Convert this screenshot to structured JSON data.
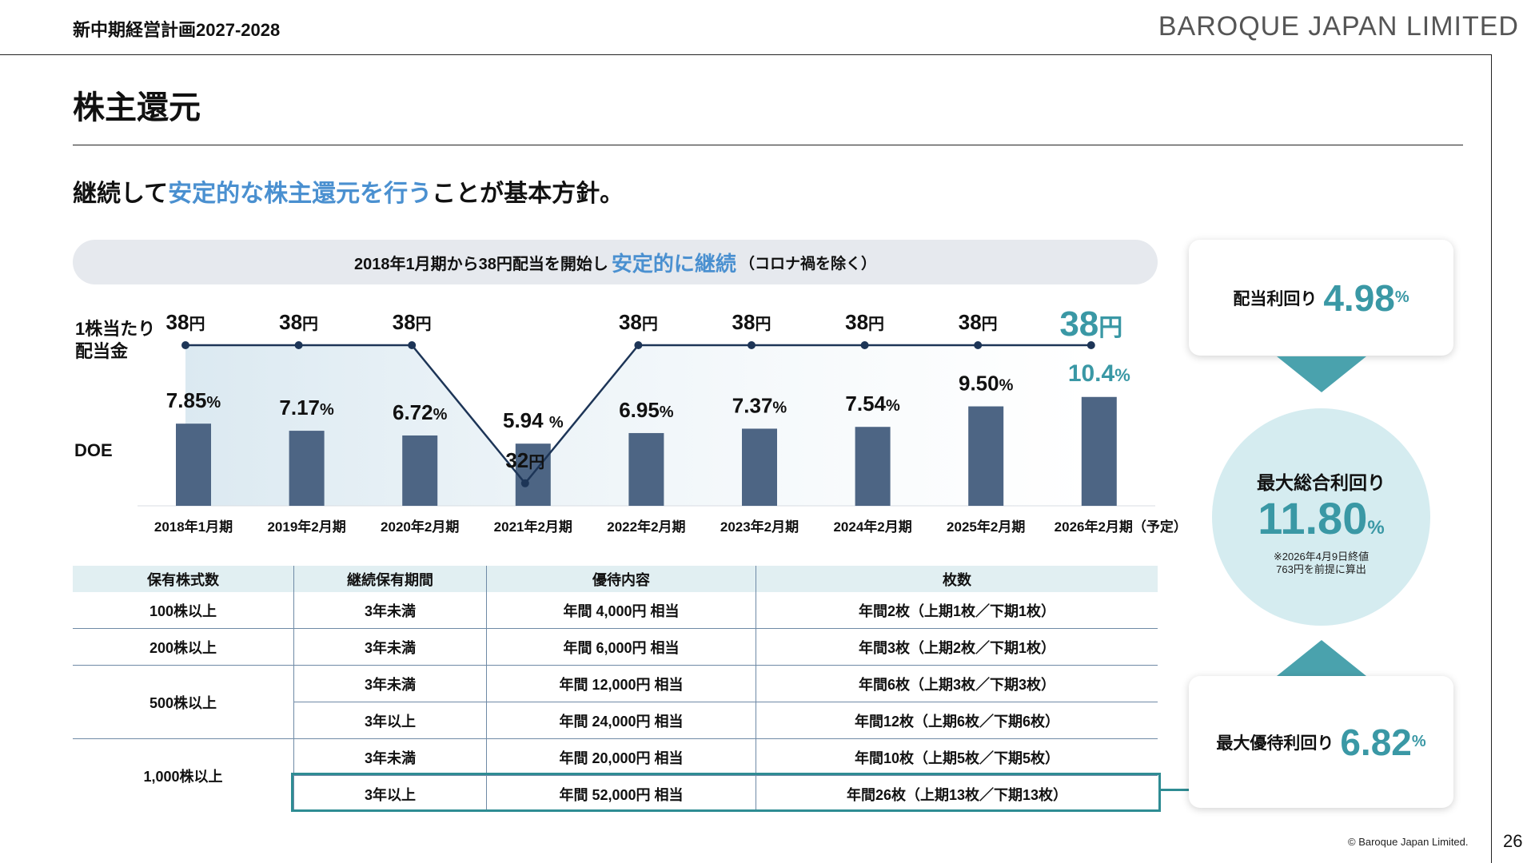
{
  "header": {
    "title": "新中期経営計画2027-2028",
    "brand": "BAROQUE JAPAN LIMITED"
  },
  "section": {
    "title": "株主還元"
  },
  "lead": {
    "part1": "継続して",
    "highlight": "安定的な株主還元を行う",
    "part2": "ことが基本方針。"
  },
  "banner": {
    "part1": "2018年1月期から38円配当を開始し",
    "highlight": "安定的に継続",
    "note": "（コロナ禍を除く）"
  },
  "chart_data": {
    "type": "bar",
    "categories": [
      "2018年1月期",
      "2019年2月期",
      "2020年2月期",
      "2021年2月期",
      "2022年2月期",
      "2023年2月期",
      "2024年2月期",
      "2025年2月期",
      "2026年2月期（予定）"
    ],
    "series": [
      {
        "name": "1株当たり配当金",
        "type": "line",
        "values": [
          38,
          38,
          38,
          32,
          38,
          38,
          38,
          38,
          38
        ],
        "labels": [
          "38",
          "38",
          "38",
          "32",
          "38",
          "38",
          "38",
          "38",
          "38"
        ],
        "unit": "円"
      },
      {
        "name": "DOE",
        "type": "bar",
        "values": [
          7.85,
          7.17,
          6.72,
          5.94,
          6.95,
          7.37,
          7.54,
          9.5,
          10.4
        ],
        "labels": [
          "7.85",
          "7.17",
          "6.72",
          "5.94 ",
          "6.95",
          "7.37",
          "7.54",
          "9.50",
          "10.4"
        ],
        "unit": "%"
      }
    ],
    "ylabels": {
      "dividend": "1株当たり\n配当金",
      "doe": "DOE"
    },
    "highlight_color": "#3a98a5",
    "bar_color": "#4d6584",
    "line_color": "#1d3557"
  },
  "table": {
    "headers": [
      "保有株式数",
      "継続保有期間",
      "優待内容",
      "枚数"
    ],
    "rows": [
      {
        "shares": "100株以上",
        "period": "3年未満",
        "benefit": "年間 4,000円 相当",
        "count": "年間2枚（上期1枚／下期1枚）"
      },
      {
        "shares": "200株以上",
        "period": "3年未満",
        "benefit": "年間 6,000円 相当",
        "count": "年間3枚（上期2枚／下期1枚）"
      },
      {
        "shares": "500株以上",
        "period": "3年未満",
        "benefit": "年間 12,000円 相当",
        "count": "年間6枚（上期3枚／下期3枚）"
      },
      {
        "shares": "",
        "period": "3年以上",
        "benefit": "年間 24,000円 相当",
        "count": "年間12枚（上期6枚／下期6枚）"
      },
      {
        "shares": "1,000株以上",
        "period": "3年未満",
        "benefit": "年間 20,000円 相当",
        "count": "年間10枚（上期5枚／下期5枚）"
      },
      {
        "shares": "",
        "period": "3年以上",
        "benefit": "年間 52,000円 相当",
        "count": "年間26枚（上期13枚／下期13枚）"
      }
    ]
  },
  "cards": {
    "dividend_yield": {
      "label": "配当利回り",
      "value": "4.98",
      "unit": "%"
    },
    "total_yield": {
      "label": "最大総合利回り",
      "value": "11.80",
      "unit": "%",
      "note1": "※2026年4月9日終値",
      "note2": "763円を前提に算出"
    },
    "benefit_yield": {
      "label": "最大優待利回り",
      "value": "6.82",
      "unit": "%"
    }
  },
  "footer": {
    "copyright": "© Baroque Japan Limited.",
    "page": "26"
  }
}
